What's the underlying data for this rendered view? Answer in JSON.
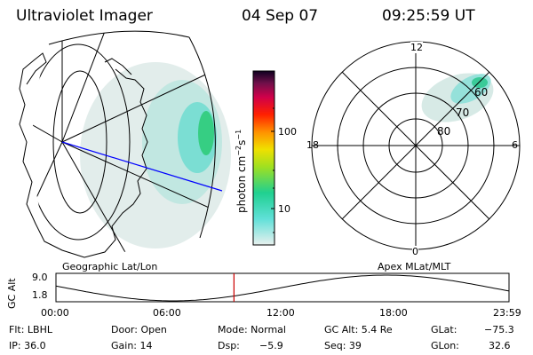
{
  "header": {
    "title": "Ultraviolet Imager",
    "date": "04 Sep 07",
    "time": "09:25:59 UT"
  },
  "colorbar": {
    "label": "photon cm",
    "label_sup": "−2",
    "label_unit": "s",
    "label_sup2": "−1",
    "ticks": [
      "100",
      "10"
    ]
  },
  "map": {
    "caption": "Geographic Lat/Lon"
  },
  "polar": {
    "caption": "Apex MLat/MLT",
    "mlt_labels": {
      "top": "12",
      "left": "18",
      "right": "6",
      "bottom": "0"
    },
    "mlat_labels": [
      "60",
      "70",
      "80"
    ]
  },
  "altitude_plot": {
    "ylabel": "GC Alt",
    "yticks": [
      "9.0",
      "1.8"
    ],
    "xticks": [
      "00:00",
      "06:00",
      "12:00",
      "18:00",
      "23:59"
    ],
    "current_time_hours": 9.43
  },
  "info": {
    "row1": {
      "flt": "Flt: LBHL",
      "door": "Door: Open",
      "mode": "Mode: Normal",
      "gcalt": "GC Alt: 5.4 Re",
      "glat_label": "GLat:",
      "glat": "−75.3"
    },
    "row2": {
      "ip": "IP: 36.0",
      "gain": "Gain: 14",
      "dsp_label": "Dsp:",
      "dsp": "−5.9",
      "seq": "Seq: 39",
      "glon_label": "GLon:",
      "glon": "32.6"
    }
  },
  "colors": {
    "track_line": "#0000ff",
    "time_marker": "#cc0000",
    "aurora_low": "#cde6e2",
    "aurora_high": "#22cc77"
  }
}
